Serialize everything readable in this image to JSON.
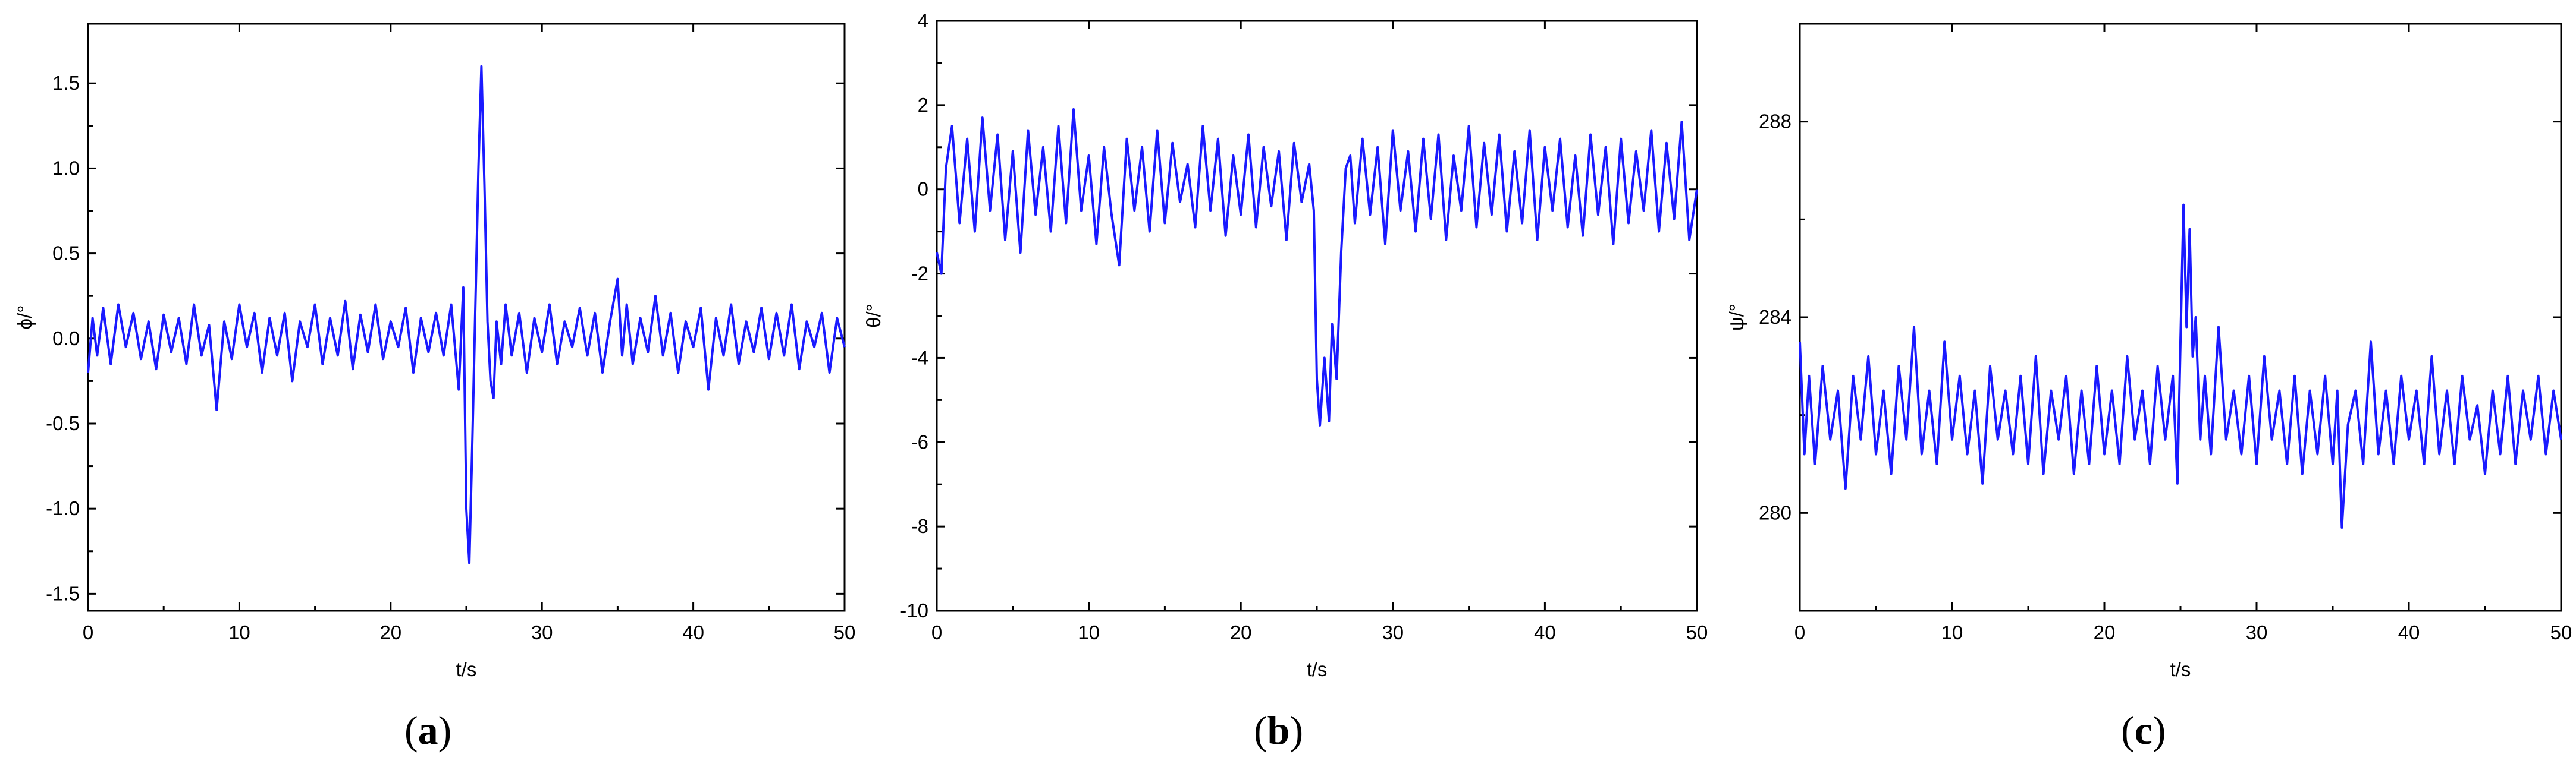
{
  "chart_data": [
    {
      "type": "line",
      "panel_label": "a",
      "xlabel": "t/s",
      "ylabel": "ϕ/°",
      "xlim": [
        0,
        50
      ],
      "ylim": [
        -1.6,
        1.85
      ],
      "xticks": [
        0,
        10,
        20,
        30,
        40,
        50
      ],
      "xtick_labels": [
        "0",
        "10",
        "20",
        "30",
        "40",
        "50"
      ],
      "yticks": [
        -1.5,
        -1.0,
        -0.5,
        0.0,
        0.5,
        1.0,
        1.5
      ],
      "ytick_labels": [
        "-1.5",
        "-1.0",
        "-0.5",
        "0.0",
        "0.5",
        "1.0",
        "1.5"
      ],
      "grid": false,
      "color": "#1a1aff",
      "series": [
        {
          "x": [
            0,
            0.3,
            0.6,
            1.0,
            1.5,
            2.0,
            2.5,
            3.0,
            3.5,
            4.0,
            4.5,
            5.0,
            5.5,
            6.0,
            6.5,
            7.0,
            7.5,
            8.0,
            8.5,
            9.0,
            9.5,
            10.0,
            10.5,
            11.0,
            11.5,
            12.0,
            12.5,
            13.0,
            13.5,
            14.0,
            14.5,
            15.0,
            15.5,
            16.0,
            16.5,
            17.0,
            17.5,
            18.0,
            18.5,
            19.0,
            19.5,
            20.0,
            20.5,
            21.0,
            21.5,
            22.0,
            22.5,
            23.0,
            23.5,
            24.0,
            24.5,
            24.8,
            25.0,
            25.2,
            25.4,
            25.6,
            25.8,
            26.0,
            26.2,
            26.4,
            26.6,
            26.8,
            27.0,
            27.3,
            27.6,
            28.0,
            28.5,
            29.0,
            29.5,
            30.0,
            30.5,
            31.0,
            31.5,
            32.0,
            32.5,
            33.0,
            33.5,
            34.0,
            34.5,
            35.0,
            35.3,
            35.6,
            36.0,
            36.5,
            37.0,
            37.5,
            38.0,
            38.5,
            39.0,
            39.5,
            40.0,
            40.5,
            41.0,
            41.5,
            42.0,
            42.5,
            43.0,
            43.5,
            44.0,
            44.5,
            45.0,
            45.5,
            46.0,
            46.5,
            47.0,
            47.5,
            48.0,
            48.5,
            49.0,
            49.5,
            50.0
          ],
          "y": [
            -0.2,
            0.12,
            -0.1,
            0.18,
            -0.15,
            0.2,
            -0.05,
            0.15,
            -0.12,
            0.1,
            -0.18,
            0.14,
            -0.08,
            0.12,
            -0.15,
            0.2,
            -0.1,
            0.08,
            -0.42,
            0.1,
            -0.12,
            0.2,
            -0.05,
            0.15,
            -0.2,
            0.12,
            -0.1,
            0.15,
            -0.25,
            0.1,
            -0.05,
            0.2,
            -0.15,
            0.12,
            -0.1,
            0.22,
            -0.18,
            0.14,
            -0.08,
            0.2,
            -0.12,
            0.1,
            -0.05,
            0.18,
            -0.2,
            0.12,
            -0.08,
            0.15,
            -0.1,
            0.2,
            -0.3,
            0.3,
            -1.0,
            -1.32,
            -0.6,
            0.2,
            1.0,
            1.6,
            0.9,
            0.1,
            -0.25,
            -0.35,
            0.1,
            -0.15,
            0.2,
            -0.1,
            0.15,
            -0.2,
            0.12,
            -0.08,
            0.2,
            -0.15,
            0.1,
            -0.05,
            0.18,
            -0.1,
            0.15,
            -0.2,
            0.1,
            0.35,
            -0.1,
            0.2,
            -0.15,
            0.12,
            -0.08,
            0.25,
            -0.1,
            0.15,
            -0.2,
            0.1,
            -0.05,
            0.18,
            -0.3,
            0.12,
            -0.1,
            0.2,
            -0.15,
            0.1,
            -0.08,
            0.18,
            -0.12,
            0.15,
            -0.1,
            0.2,
            -0.18,
            0.1,
            -0.05,
            0.15,
            -0.2,
            0.12,
            -0.05
          ]
        }
      ]
    },
    {
      "type": "line",
      "panel_label": "b",
      "xlabel": "t/s",
      "ylabel": "θ/°",
      "xlim": [
        0,
        50
      ],
      "ylim": [
        -10,
        4
      ],
      "xticks": [
        0,
        10,
        20,
        30,
        40,
        50
      ],
      "xtick_labels": [
        "0",
        "10",
        "20",
        "30",
        "40",
        "50"
      ],
      "yticks": [
        -10,
        -8,
        -6,
        -4,
        -2,
        0,
        2,
        4
      ],
      "ytick_labels": [
        "-10",
        "-8",
        "-6",
        "-4",
        "-2",
        "0",
        "2",
        "4"
      ],
      "grid": false,
      "color": "#1a1aff",
      "series": [
        {
          "x": [
            0,
            0.3,
            0.6,
            1.0,
            1.5,
            2.0,
            2.5,
            3.0,
            3.5,
            4.0,
            4.5,
            5.0,
            5.5,
            6.0,
            6.5,
            7.0,
            7.5,
            8.0,
            8.5,
            9.0,
            9.5,
            10.0,
            10.5,
            11.0,
            11.5,
            12.0,
            12.5,
            13.0,
            13.5,
            14.0,
            14.5,
            15.0,
            15.5,
            16.0,
            16.5,
            17.0,
            17.5,
            18.0,
            18.5,
            19.0,
            19.5,
            20.0,
            20.5,
            21.0,
            21.5,
            22.0,
            22.5,
            23.0,
            23.5,
            24.0,
            24.5,
            24.8,
            25.0,
            25.2,
            25.5,
            25.8,
            26.0,
            26.3,
            26.6,
            26.9,
            27.2,
            27.5,
            28.0,
            28.5,
            29.0,
            29.5,
            30.0,
            30.5,
            31.0,
            31.5,
            32.0,
            32.5,
            33.0,
            33.5,
            34.0,
            34.5,
            35.0,
            35.5,
            36.0,
            36.5,
            37.0,
            37.5,
            38.0,
            38.5,
            39.0,
            39.5,
            40.0,
            40.5,
            41.0,
            41.5,
            42.0,
            42.5,
            43.0,
            43.5,
            44.0,
            44.5,
            45.0,
            45.5,
            46.0,
            46.5,
            47.0,
            47.5,
            48.0,
            48.5,
            49.0,
            49.5,
            50.0
          ],
          "y": [
            -1.5,
            -2.0,
            0.5,
            1.5,
            -0.8,
            1.2,
            -1.0,
            1.7,
            -0.5,
            1.3,
            -1.2,
            0.9,
            -1.5,
            1.4,
            -0.6,
            1.0,
            -1.0,
            1.5,
            -0.8,
            1.9,
            -0.5,
            0.8,
            -1.3,
            1.0,
            -0.6,
            -1.8,
            1.2,
            -0.5,
            1.0,
            -1.0,
            1.4,
            -0.8,
            1.1,
            -0.3,
            0.6,
            -0.9,
            1.5,
            -0.5,
            1.2,
            -1.1,
            0.8,
            -0.6,
            1.3,
            -0.9,
            1.0,
            -0.4,
            0.9,
            -1.2,
            1.1,
            -0.3,
            0.6,
            -0.5,
            -4.5,
            -5.6,
            -4.0,
            -5.5,
            -3.2,
            -4.5,
            -1.5,
            0.5,
            0.8,
            -0.8,
            1.2,
            -0.6,
            1.0,
            -1.3,
            1.4,
            -0.5,
            0.9,
            -1.0,
            1.2,
            -0.7,
            1.3,
            -1.2,
            0.8,
            -0.5,
            1.5,
            -0.9,
            1.1,
            -0.6,
            1.3,
            -1.0,
            0.9,
            -0.8,
            1.4,
            -1.2,
            1.0,
            -0.5,
            1.2,
            -0.9,
            0.8,
            -1.1,
            1.3,
            -0.6,
            1.0,
            -1.3,
            1.2,
            -0.8,
            0.9,
            -0.5,
            1.4,
            -1.0,
            1.1,
            -0.7,
            1.6,
            -1.2,
            0.0
          ]
        }
      ]
    },
    {
      "type": "line",
      "panel_label": "c",
      "xlabel": "t/s",
      "ylabel": "ψ/°",
      "xlim": [
        0,
        50
      ],
      "ylim": [
        278,
        290
      ],
      "xticks": [
        0,
        10,
        20,
        30,
        40,
        50
      ],
      "xtick_labels": [
        "0",
        "10",
        "20",
        "30",
        "40",
        "50"
      ],
      "yticks": [
        280,
        284,
        288
      ],
      "ytick_labels": [
        "280",
        "284",
        "288"
      ],
      "grid": false,
      "color": "#1a1aff",
      "series": [
        {
          "x": [
            0,
            0.3,
            0.6,
            1.0,
            1.5,
            2.0,
            2.5,
            3.0,
            3.5,
            4.0,
            4.5,
            5.0,
            5.5,
            6.0,
            6.5,
            7.0,
            7.5,
            8.0,
            8.5,
            9.0,
            9.5,
            10.0,
            10.5,
            11.0,
            11.5,
            12.0,
            12.5,
            13.0,
            13.5,
            14.0,
            14.5,
            15.0,
            15.5,
            16.0,
            16.5,
            17.0,
            17.5,
            18.0,
            18.5,
            19.0,
            19.5,
            20.0,
            20.5,
            21.0,
            21.5,
            22.0,
            22.5,
            23.0,
            23.5,
            24.0,
            24.5,
            24.8,
            25.0,
            25.2,
            25.4,
            25.6,
            25.8,
            26.0,
            26.3,
            26.6,
            27.0,
            27.5,
            28.0,
            28.5,
            29.0,
            29.5,
            30.0,
            30.5,
            31.0,
            31.5,
            32.0,
            32.5,
            33.0,
            33.5,
            34.0,
            34.5,
            35.0,
            35.3,
            35.6,
            36.0,
            36.5,
            37.0,
            37.5,
            38.0,
            38.5,
            39.0,
            39.5,
            40.0,
            40.5,
            41.0,
            41.5,
            42.0,
            42.5,
            43.0,
            43.5,
            44.0,
            44.5,
            45.0,
            45.5,
            46.0,
            46.5,
            47.0,
            47.5,
            48.0,
            48.5,
            49.0,
            49.5,
            50.0
          ],
          "y": [
            283.5,
            281.2,
            282.8,
            281.0,
            283.0,
            281.5,
            282.5,
            280.5,
            282.8,
            281.5,
            283.2,
            281.2,
            282.5,
            280.8,
            283.0,
            281.5,
            283.8,
            281.2,
            282.5,
            281.0,
            283.5,
            281.5,
            282.8,
            281.2,
            282.5,
            280.6,
            283.0,
            281.5,
            282.5,
            281.2,
            282.8,
            281.0,
            283.2,
            280.8,
            282.5,
            281.5,
            282.8,
            280.8,
            282.5,
            281.0,
            283.0,
            281.2,
            282.5,
            281.0,
            283.2,
            281.5,
            282.5,
            281.0,
            283.0,
            281.5,
            282.8,
            280.6,
            283.5,
            286.3,
            283.8,
            285.8,
            283.2,
            284.0,
            281.5,
            282.8,
            281.2,
            283.8,
            281.5,
            282.5,
            281.2,
            282.8,
            281.0,
            283.2,
            281.5,
            282.5,
            281.0,
            282.8,
            280.8,
            282.5,
            281.2,
            282.8,
            281.0,
            282.5,
            279.7,
            281.8,
            282.5,
            281.0,
            283.5,
            281.2,
            282.5,
            281.0,
            282.8,
            281.5,
            282.5,
            281.0,
            283.2,
            281.2,
            282.5,
            281.0,
            282.8,
            281.5,
            282.2,
            280.8,
            282.5,
            281.2,
            282.8,
            281.0,
            282.5,
            281.5,
            282.8,
            281.2,
            282.5,
            281.5
          ]
        }
      ]
    }
  ]
}
